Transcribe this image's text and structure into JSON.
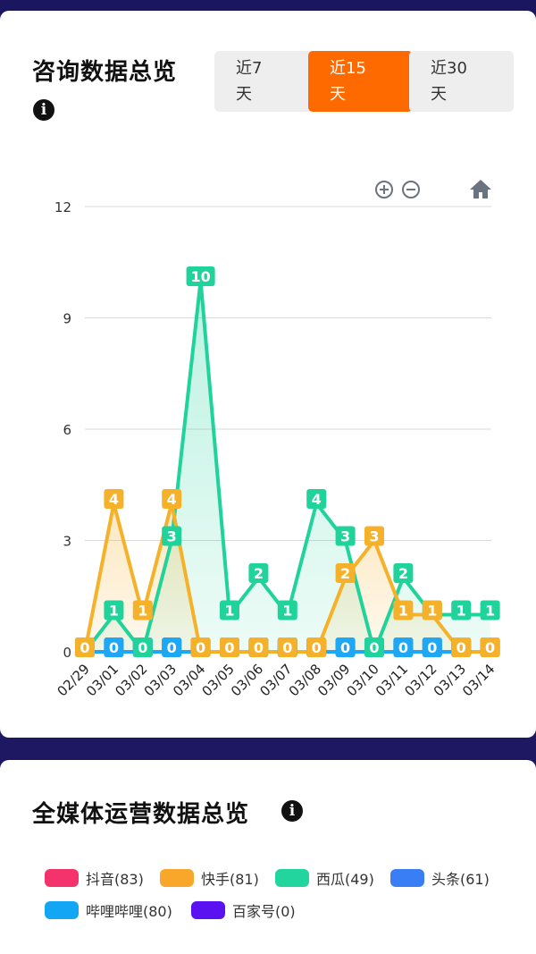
{
  "header": {
    "title": "咨询数据总览",
    "tabs": [
      {
        "line1": "近7",
        "line2": "天",
        "active": false
      },
      {
        "line1": "近15",
        "line2": "天",
        "active": true
      },
      {
        "line1": "近30",
        "line2": "天",
        "active": false
      }
    ]
  },
  "toolbar": {
    "icons": [
      "zoom-in-icon",
      "zoom-out-icon",
      "home-icon"
    ]
  },
  "chart_data": {
    "type": "area",
    "categories": [
      "02/29",
      "03/01",
      "03/02",
      "03/03",
      "03/04",
      "03/05",
      "03/06",
      "03/07",
      "03/08",
      "03/09",
      "03/10",
      "03/11",
      "03/12",
      "03/13",
      "03/14"
    ],
    "ylim": [
      0,
      12
    ],
    "yticks": [
      0,
      3,
      6,
      9,
      12
    ],
    "grid": true,
    "series": [
      {
        "key": "toutiao",
        "color": "#3b82f6",
        "values": [
          0,
          0,
          0,
          0,
          0,
          0,
          0,
          0,
          0,
          0,
          0,
          0,
          0,
          0,
          0
        ]
      },
      {
        "key": "bilibili",
        "color": "#1ea7f5",
        "values": [
          0,
          0,
          0,
          0,
          0,
          0,
          0,
          0,
          0,
          0,
          0,
          0,
          0,
          0,
          0
        ]
      },
      {
        "key": "xigua",
        "color": "#20d39b",
        "values": [
          0,
          1,
          0,
          3,
          10,
          1,
          2,
          1,
          4,
          3,
          0,
          2,
          1,
          1,
          1
        ]
      },
      {
        "key": "kuaishou",
        "color": "#f5b12a",
        "values": [
          0,
          4,
          1,
          4,
          0,
          0,
          0,
          0,
          0,
          2,
          3,
          1,
          1,
          0,
          0
        ]
      }
    ]
  },
  "section2": {
    "title": "全媒体运营数据总览",
    "legend": [
      {
        "label": "抖音(83)",
        "color": "#f4336d"
      },
      {
        "label": "快手(81)",
        "color": "#f9a72b"
      },
      {
        "label": "西瓜(49)",
        "color": "#22d49e"
      },
      {
        "label": "头条(61)",
        "color": "#3a7ef6"
      },
      {
        "label": "哔哩哔哩(80)",
        "color": "#13a6f5"
      },
      {
        "label": "百家号(0)",
        "color": "#5b12f0"
      }
    ]
  }
}
